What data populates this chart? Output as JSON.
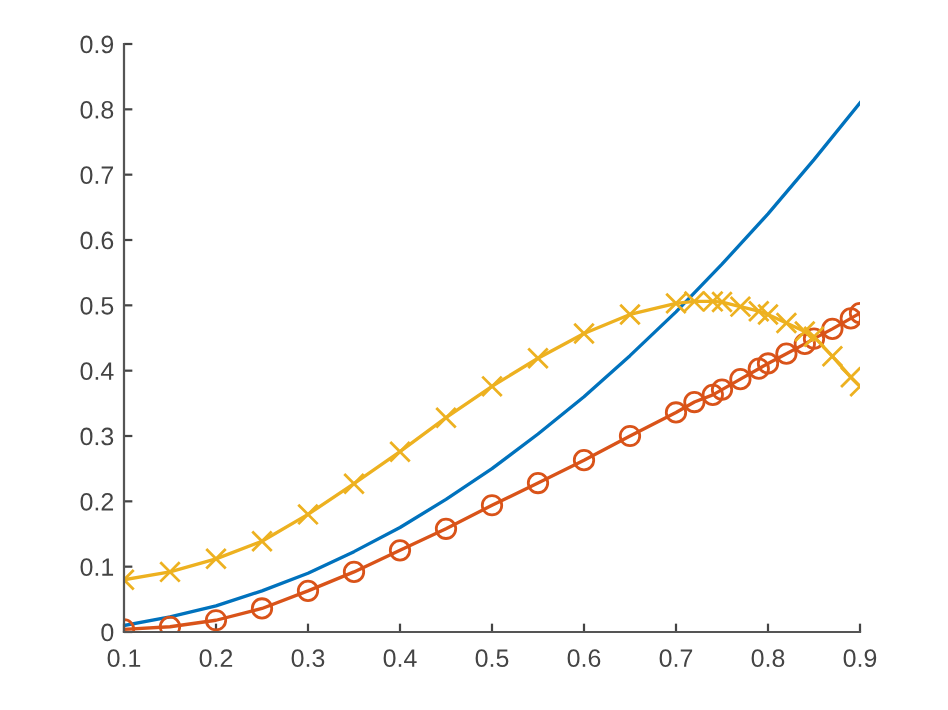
{
  "chart_data": {
    "type": "line",
    "series": [
      {
        "color": "#0072bd",
        "marker": "none",
        "x": [
          0.1,
          0.15,
          0.2,
          0.25,
          0.3,
          0.35,
          0.4,
          0.45,
          0.5,
          0.55,
          0.6,
          0.65,
          0.7,
          0.75,
          0.8,
          0.85,
          0.9
        ],
        "values": [
          0.01,
          0.023,
          0.04,
          0.063,
          0.09,
          0.123,
          0.16,
          0.203,
          0.25,
          0.303,
          0.36,
          0.423,
          0.49,
          0.563,
          0.64,
          0.723,
          0.81
        ]
      },
      {
        "color": "#d95319",
        "marker": "circle",
        "x": [
          0.1,
          0.15,
          0.2,
          0.25,
          0.3,
          0.35,
          0.4,
          0.45,
          0.5,
          0.55,
          0.6,
          0.65,
          0.7,
          0.72,
          0.74,
          0.75,
          0.77,
          0.79,
          0.8,
          0.82,
          0.84,
          0.85,
          0.87,
          0.89,
          0.9
        ],
        "values": [
          0.004,
          0.008,
          0.018,
          0.036,
          0.063,
          0.092,
          0.125,
          0.158,
          0.194,
          0.228,
          0.263,
          0.3,
          0.336,
          0.352,
          0.363,
          0.371,
          0.387,
          0.403,
          0.411,
          0.426,
          0.441,
          0.449,
          0.464,
          0.48,
          0.488
        ]
      },
      {
        "color": "#edb120",
        "marker": "cross",
        "x": [
          0.1,
          0.15,
          0.2,
          0.25,
          0.3,
          0.35,
          0.4,
          0.45,
          0.5,
          0.55,
          0.6,
          0.65,
          0.7,
          0.72,
          0.74,
          0.75,
          0.77,
          0.79,
          0.8,
          0.82,
          0.84,
          0.85,
          0.87,
          0.89,
          0.9
        ],
        "values": [
          0.08,
          0.092,
          0.112,
          0.139,
          0.18,
          0.227,
          0.276,
          0.328,
          0.376,
          0.419,
          0.457,
          0.486,
          0.503,
          0.506,
          0.506,
          0.505,
          0.498,
          0.491,
          0.486,
          0.473,
          0.46,
          0.452,
          0.422,
          0.39,
          0.376
        ]
      }
    ],
    "xlim": [
      0.1,
      0.9
    ],
    "ylim": [
      0,
      0.9
    ],
    "xticks": [
      0.1,
      0.2,
      0.3,
      0.4,
      0.5,
      0.6,
      0.7,
      0.8,
      0.9
    ],
    "yticks": [
      0,
      0.1,
      0.2,
      0.3,
      0.4,
      0.5,
      0.6,
      0.7,
      0.8,
      0.9
    ],
    "line_style": "solid"
  }
}
